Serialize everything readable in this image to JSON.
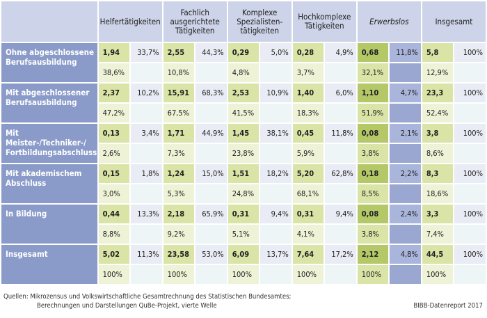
{
  "columns": [
    {
      "label": "Helfertätigkeiten",
      "italic": false
    },
    {
      "label": "Fachlich ausgerichtete Tätigkeiten",
      "italic": false
    },
    {
      "label": "Komplexe Spezialisten-tätigkeiten",
      "italic": false
    },
    {
      "label": "Hochkomplexe Tätigkeiten",
      "italic": false
    },
    {
      "label": "Erwerbslos",
      "italic": true
    },
    {
      "label": "Insgesamt",
      "italic": false
    }
  ],
  "rows": [
    {
      "label_lines": [
        "Ohne abgeschlossene",
        "Berufsausbildung"
      ],
      "cells": [
        {
          "value": "1,94",
          "pct": "33,7%",
          "sub": "38,6%"
        },
        {
          "value": "2,55",
          "pct": "44,3%",
          "sub": "10,8%"
        },
        {
          "value": "0,29",
          "pct": "5,0%",
          "sub": "4,8%"
        },
        {
          "value": "0,28",
          "pct": "4,9%",
          "sub": "3,7%"
        },
        {
          "value": "0,68",
          "pct": "11,8%",
          "sub": "32,1%"
        },
        {
          "value": "5,8",
          "pct": "100%",
          "sub": "12,9%"
        }
      ]
    },
    {
      "label_lines": [
        "Mit abgeschlossener",
        "Berufsausbildung"
      ],
      "cells": [
        {
          "value": "2,37",
          "pct": "10,2%",
          "sub": "47,2%"
        },
        {
          "value": "15,91",
          "pct": "68,3%",
          "sub": "67,5%"
        },
        {
          "value": "2,53",
          "pct": "10,9%",
          "sub": "41,5%"
        },
        {
          "value": "1,40",
          "pct": "6,0%",
          "sub": "18,3%"
        },
        {
          "value": "1,10",
          "pct": "4,7%",
          "sub": "51,9%"
        },
        {
          "value": "23,3",
          "pct": "100%",
          "sub": "52,4%"
        }
      ]
    },
    {
      "label_lines": [
        "Mit Meister-/Techniker-/",
        "Fortbildungsabschluss"
      ],
      "cells": [
        {
          "value": "0,13",
          "pct": "3,4%",
          "sub": "2,6%"
        },
        {
          "value": "1,71",
          "pct": "44,9%",
          "sub": "7,3%"
        },
        {
          "value": "1,45",
          "pct": "38,1%",
          "sub": "23,8%"
        },
        {
          "value": "0,45",
          "pct": "11,8%",
          "sub": "5,9%"
        },
        {
          "value": "0,08",
          "pct": "2,1%",
          "sub": "3,8%"
        },
        {
          "value": "3,8",
          "pct": "100%",
          "sub": "8,6%"
        }
      ]
    },
    {
      "label_lines": [
        "Mit akademischem",
        "Abschluss"
      ],
      "cells": [
        {
          "value": "0,15",
          "pct": "1,8%",
          "sub": "3,0%"
        },
        {
          "value": "1,24",
          "pct": "15,0%",
          "sub": "5,3%"
        },
        {
          "value": "1,51",
          "pct": "18,2%",
          "sub": "24,8%"
        },
        {
          "value": "5,20",
          "pct": "62,8%",
          "sub": "68,1%"
        },
        {
          "value": "0,18",
          "pct": "2,2%",
          "sub": "8,5%"
        },
        {
          "value": "8,3",
          "pct": "100%",
          "sub": "18,6%"
        }
      ]
    },
    {
      "label_lines": [
        "In Bildung"
      ],
      "cells": [
        {
          "value": "0,44",
          "pct": "13,3%",
          "sub": "8,8%"
        },
        {
          "value": "2,18",
          "pct": "65,9%",
          "sub": "9,2%"
        },
        {
          "value": "0,31",
          "pct": "9,4%",
          "sub": "5,1%"
        },
        {
          "value": "0,31",
          "pct": "9,4%",
          "sub": "4,1%"
        },
        {
          "value": "0,08",
          "pct": "2,4%",
          "sub": "3,8%"
        },
        {
          "value": "3,3",
          "pct": "100%",
          "sub": "7,4%"
        }
      ]
    },
    {
      "label_lines": [
        "Insgesamt"
      ],
      "cells": [
        {
          "value": "5,02",
          "pct": "11,3%",
          "sub": "100%"
        },
        {
          "value": "23,58",
          "pct": "53,0%",
          "sub": "100%"
        },
        {
          "value": "6,09",
          "pct": "13,7%",
          "sub": "100%"
        },
        {
          "value": "7,64",
          "pct": "17,2%",
          "sub": "100%"
        },
        {
          "value": "2,12",
          "pct": "4,8%",
          "sub": "100%"
        },
        {
          "value": "44,5",
          "pct": "100%",
          "sub": "100%"
        }
      ]
    }
  ],
  "source": {
    "line1": "Quellen: Mikrozensus und Volkswirtschaftliche Gesamtrechnung des Statistischen Bundesamtes;",
    "line2": "Berechnungen und Darstellungen QuBe-Projekt, vierte Welle"
  },
  "credit": "BIBB-Datenreport 2017",
  "colors": {
    "header_bg": "#cdd3e8",
    "row_label_bg": "#8b9bc9",
    "value_bg": "#d9e4a6",
    "pct_bg": "#e9ecf5",
    "sub_bg": "#eef2d6",
    "erwerbslos_value_bg": "#b5c868",
    "erwerbslos_pct_bg": "#a9b5da"
  }
}
